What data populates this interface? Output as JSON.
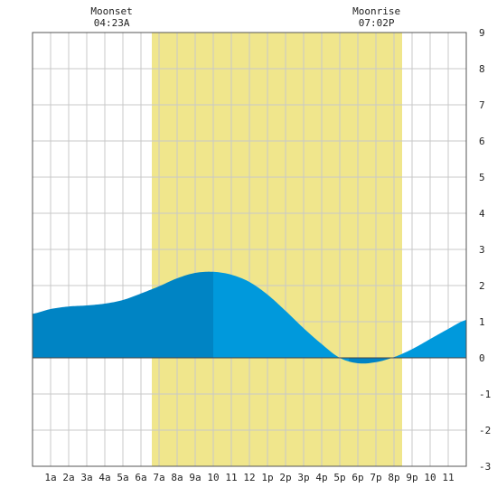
{
  "chart_data": {
    "type": "area",
    "title": "",
    "xlabel": "",
    "ylabel": "",
    "xlim": [
      0,
      24
    ],
    "ylim": [
      -3,
      9
    ],
    "grid": true,
    "x_ticks": [
      "1a",
      "2a",
      "3a",
      "4a",
      "5a",
      "6a",
      "7a",
      "8a",
      "9a",
      "10",
      "11",
      "12",
      "1p",
      "2p",
      "3p",
      "4p",
      "5p",
      "6p",
      "7p",
      "8p",
      "9p",
      "10",
      "11"
    ],
    "y_ticks": [
      9,
      8,
      7,
      6,
      5,
      4,
      3,
      2,
      1,
      0,
      -1,
      -2,
      -3
    ],
    "daylight": {
      "start_hour": 6.6,
      "end_hour": 20.45,
      "color": "#f0e68c"
    },
    "moon_events": [
      {
        "label": "Moonset",
        "time": "04:23A",
        "hour": 4.38
      },
      {
        "label": "Moonrise",
        "time": "07:02P",
        "hour": 19.03
      }
    ],
    "tide_series": {
      "name": "",
      "hours": [
        0,
        1,
        2,
        3,
        4,
        5,
        6,
        7,
        8,
        9,
        10,
        11,
        12,
        13,
        14,
        15,
        16,
        17,
        18,
        19,
        20,
        21,
        22,
        23,
        24
      ],
      "heights": [
        1.22,
        1.35,
        1.42,
        1.45,
        1.5,
        1.6,
        1.78,
        1.98,
        2.2,
        2.35,
        2.38,
        2.3,
        2.1,
        1.75,
        1.3,
        0.82,
        0.38,
        0.0,
        -0.15,
        -0.12,
        0.02,
        0.24,
        0.52,
        0.8,
        1.05
      ]
    },
    "shade_split_hours": [
      10,
      17.5,
      20.1
    ],
    "colors": {
      "dark": "#0084c4",
      "light": "#0099dc",
      "grid": "#c8c8c8",
      "zero": "#444444"
    }
  }
}
